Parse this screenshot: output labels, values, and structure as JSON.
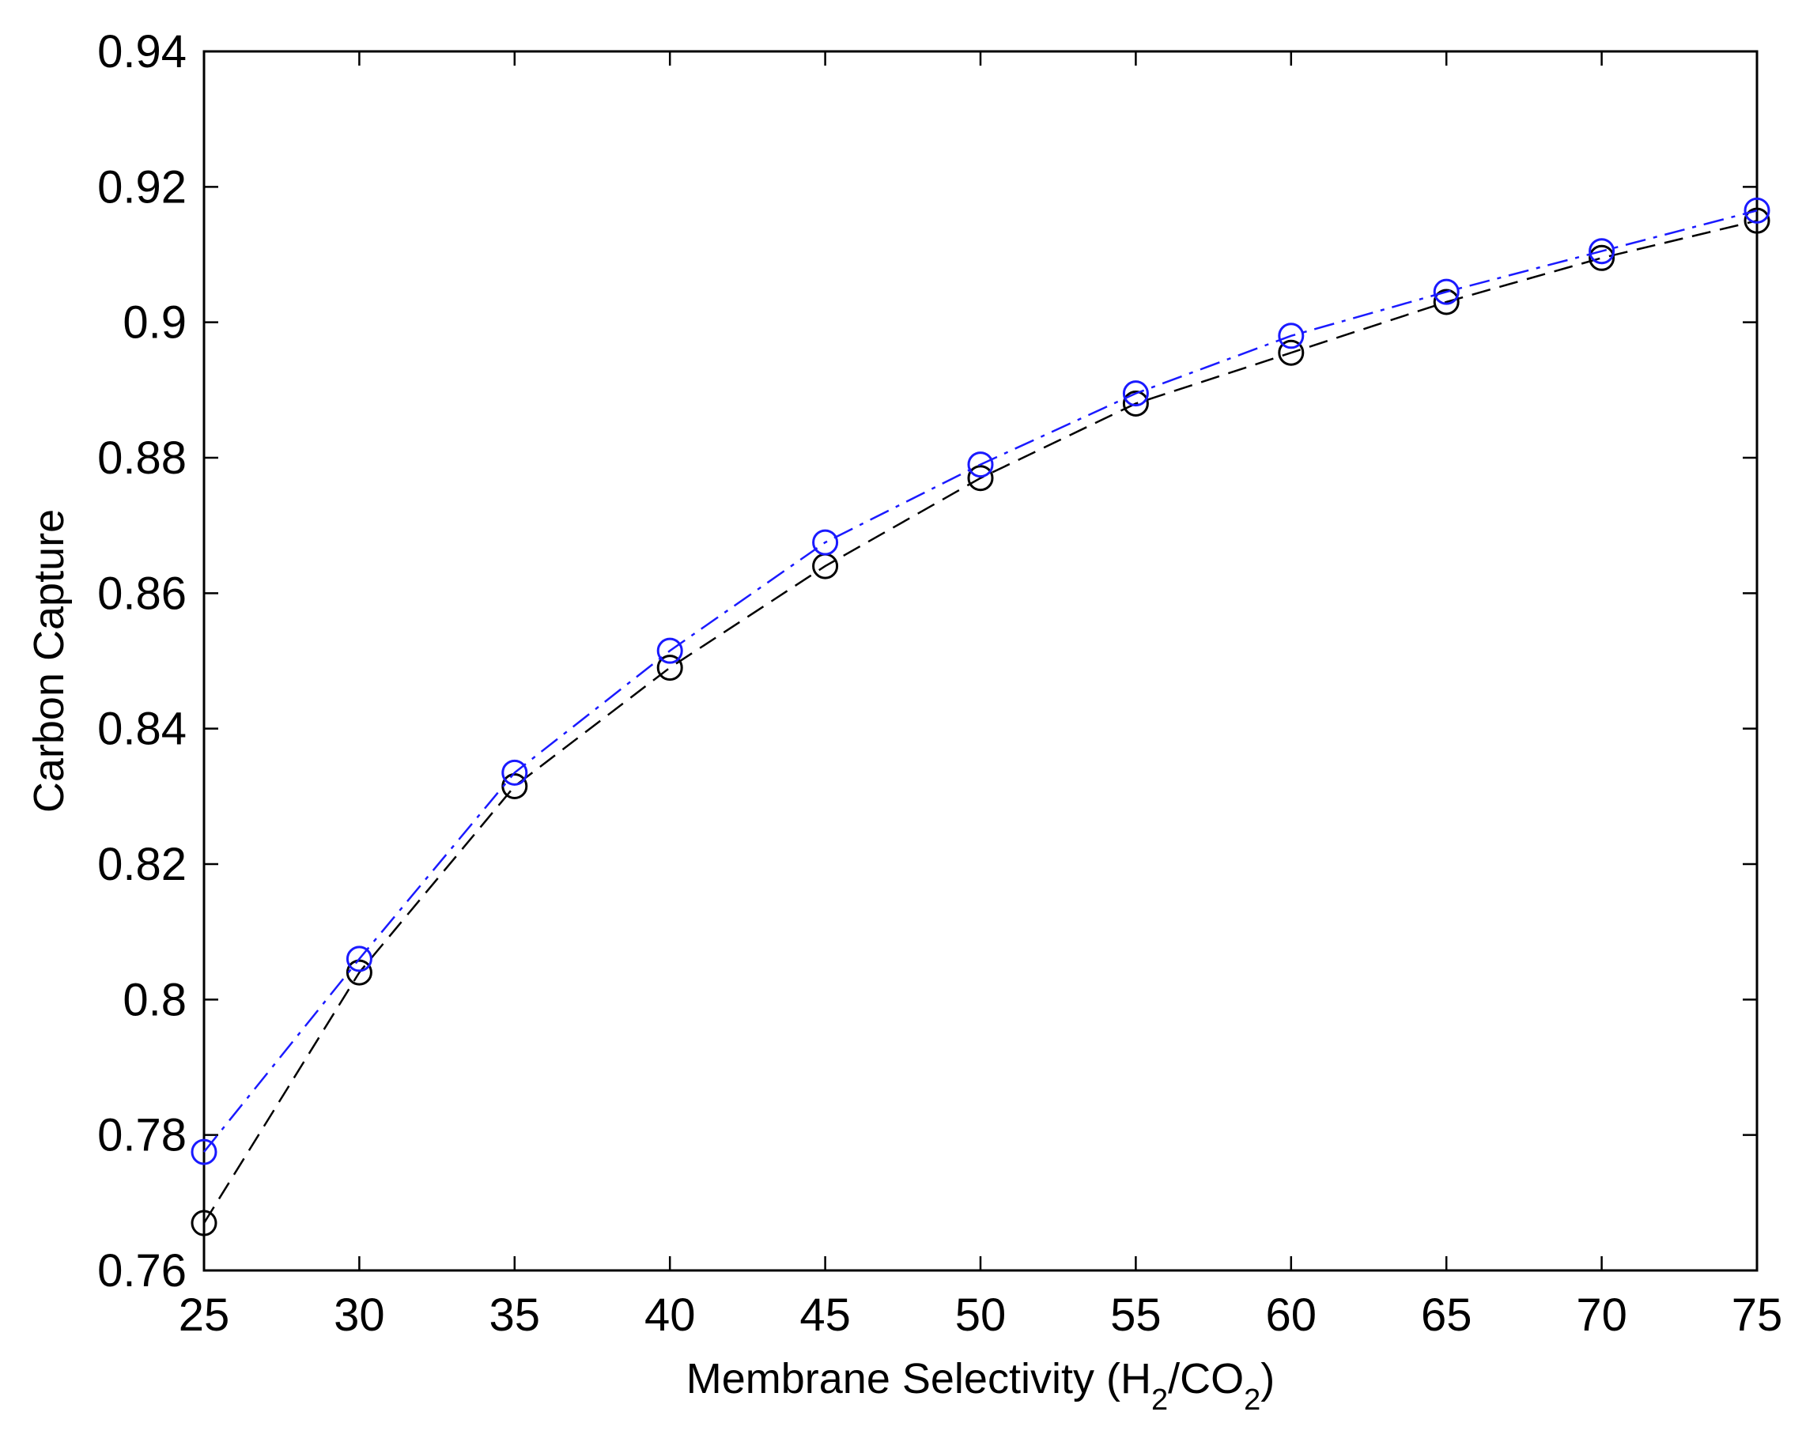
{
  "chart_data": {
    "type": "line",
    "title": "",
    "xlabel": {
      "prefix": "Membrane Selectivity (H",
      "sub1": "2",
      "middle": "/CO",
      "sub2": "2",
      "suffix": ")"
    },
    "ylabel": "Carbon Capture",
    "xlim": [
      25,
      75
    ],
    "ylim": [
      0.76,
      0.94
    ],
    "xticks": [
      25,
      30,
      35,
      40,
      45,
      50,
      55,
      60,
      65,
      70,
      75
    ],
    "xtick_labels": [
      "25",
      "30",
      "35",
      "40",
      "45",
      "50",
      "55",
      "60",
      "65",
      "70",
      "75"
    ],
    "yticks": [
      0.76,
      0.78,
      0.8,
      0.82,
      0.84,
      0.86,
      0.88,
      0.9,
      0.92,
      0.94
    ],
    "ytick_labels": [
      "0.76",
      "0.78",
      "0.8",
      "0.82",
      "0.84",
      "0.86",
      "0.88",
      "0.9",
      "0.92",
      "0.94"
    ],
    "grid": false,
    "x": [
      25,
      30,
      35,
      40,
      45,
      50,
      55,
      60,
      65,
      70,
      75
    ],
    "series": [
      {
        "color": "#000000",
        "line_style": "dashed",
        "marker": "open-circle",
        "values": [
          0.767,
          0.804,
          0.8315,
          0.849,
          0.864,
          0.877,
          0.888,
          0.8955,
          0.903,
          0.9095,
          0.915
        ]
      },
      {
        "color": "#1a1aff",
        "line_style": "dash-dot",
        "marker": "open-circle",
        "values": [
          0.7775,
          0.806,
          0.8335,
          0.8515,
          0.8675,
          0.879,
          0.8895,
          0.898,
          0.9045,
          0.9105,
          0.9165
        ]
      }
    ]
  }
}
